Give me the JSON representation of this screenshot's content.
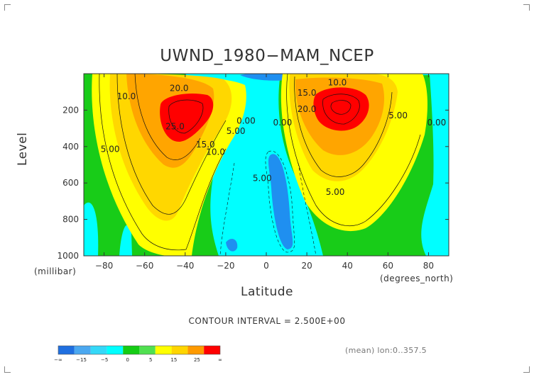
{
  "chart_data": {
    "type": "heatmap",
    "title": "UWND_1980−MAM_NCEP",
    "xlabel": "Latitude",
    "ylabel": "Level",
    "x_unit": "(degrees_north)",
    "y_unit": "(millibar)",
    "xlim": [
      -90,
      90
    ],
    "ylim": [
      1000,
      0
    ],
    "x_ticks": [
      -80,
      -60,
      -40,
      -20,
      0,
      20,
      40,
      60,
      80
    ],
    "x_tick_labels": [
      "−80",
      "−60",
      "−40",
      "−20",
      "0",
      "20",
      "40",
      "60",
      "80"
    ],
    "y_ticks": [
      200,
      400,
      600,
      800,
      1000
    ],
    "y_tick_labels": [
      "200",
      "400",
      "600",
      "800",
      "1000"
    ],
    "contour_interval": "CONTOUR INTERVAL = 2.500E+00",
    "contour_labels": [
      {
        "text": "20.0",
        "x": -43,
        "y": 95
      },
      {
        "text": "10.0",
        "x": -69,
        "y": 140
      },
      {
        "text": "25.0",
        "x": -45,
        "y": 305
      },
      {
        "text": "15.0",
        "x": -30,
        "y": 405
      },
      {
        "text": "10.0",
        "x": -25,
        "y": 445
      },
      {
        "text": "5.00",
        "x": -15,
        "y": 330
      },
      {
        "text": "0.00",
        "x": -10,
        "y": 275
      },
      {
        "text": "5.00",
        "x": -77,
        "y": 430
      },
      {
        "text": "0.00",
        "x": 8,
        "y": 285
      },
      {
        "text": "5.00",
        "x": -2,
        "y": 590
      },
      {
        "text": "15.0",
        "x": 20,
        "y": 120
      },
      {
        "text": "10.0",
        "x": 35,
        "y": 65
      },
      {
        "text": "20.0",
        "x": 20,
        "y": 210
      },
      {
        "text": "5.00",
        "x": 65,
        "y": 245
      },
      {
        "text": "5.00",
        "x": 34,
        "y": 665
      },
      {
        "text": "0.00",
        "x": 84,
        "y": 285
      }
    ],
    "colorbar": {
      "colors": [
        "#1f6fe0",
        "#4ba8f0",
        "#34d8f8",
        "#00ffff",
        "#14cc14",
        "#50e050",
        "#ffff00",
        "#ffd500",
        "#ff9a00",
        "#ff0000"
      ],
      "labels": [
        "−∞",
        "−15",
        "−5",
        "0",
        "5",
        "15",
        "25",
        "∞"
      ]
    },
    "colors": {
      "negative": "#1f8ff0",
      "zero": "#00ffff",
      "low": "#18cc18",
      "mid": "#ffff00",
      "high": "#ffa500",
      "max": "#ff0000"
    }
  },
  "footnote": "(mean) lon:0..357.5"
}
